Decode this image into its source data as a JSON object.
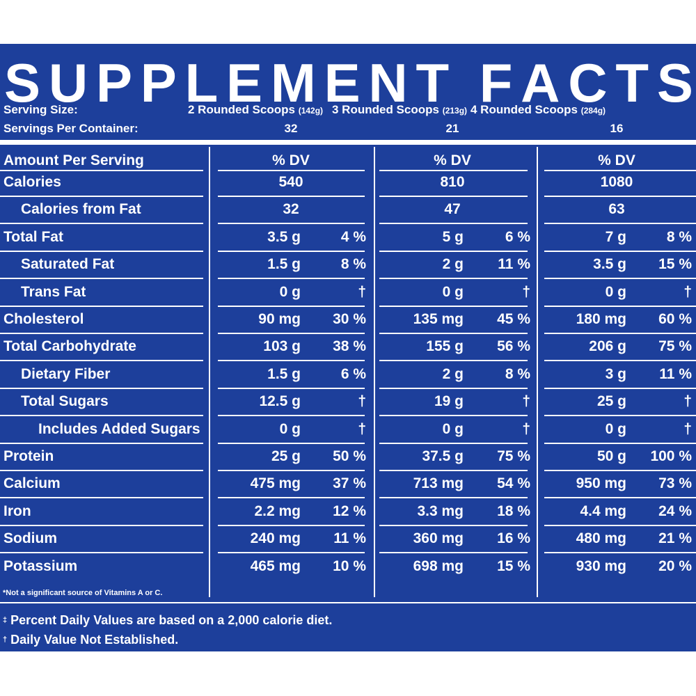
{
  "title_letters": [
    "S",
    "U",
    "P",
    "P",
    "L",
    "E",
    "M",
    "E",
    "N",
    "T",
    " ",
    "F",
    "A",
    "C",
    "T",
    "S"
  ],
  "serving": {
    "size_label": "Serving Size:",
    "per_container_label": "Servings Per Container:",
    "options": [
      {
        "label": "2 Rounded Scoops",
        "grams": "(142g)",
        "servings": "32"
      },
      {
        "label": "3 Rounded Scoops",
        "grams": "(213g)",
        "servings": "21"
      },
      {
        "label": "4 Rounded Scoops",
        "grams": "(284g)",
        "servings": "16"
      }
    ]
  },
  "header": {
    "amount_label": "Amount Per Serving",
    "dv_labels": [
      "% DV",
      "% DV",
      "% DV"
    ]
  },
  "rows": [
    {
      "label": "Calories",
      "indent": 0,
      "single": true,
      "values": [
        "540",
        "810",
        "1080"
      ]
    },
    {
      "label": "Calories from Fat",
      "indent": 1,
      "single": true,
      "values": [
        "32",
        "47",
        "63"
      ]
    },
    {
      "label": "Total Fat",
      "indent": 0,
      "values": [
        [
          "3.5 g",
          "4 %"
        ],
        [
          "5 g",
          "6 %"
        ],
        [
          "7 g",
          "8 %"
        ]
      ]
    },
    {
      "label": "Saturated Fat",
      "indent": 1,
      "values": [
        [
          "1.5 g",
          "8 %"
        ],
        [
          "2 g",
          "11 %"
        ],
        [
          "3.5 g",
          "15 %"
        ]
      ]
    },
    {
      "label": "Trans Fat",
      "indent": 1,
      "values": [
        [
          "0 g",
          "†"
        ],
        [
          "0 g",
          "†"
        ],
        [
          "0 g",
          "†"
        ]
      ]
    },
    {
      "label": "Cholesterol",
      "indent": 0,
      "values": [
        [
          "90 mg",
          "30 %"
        ],
        [
          "135 mg",
          "45 %"
        ],
        [
          "180 mg",
          "60 %"
        ]
      ]
    },
    {
      "label": "Total Carbohydrate",
      "indent": 0,
      "values": [
        [
          "103 g",
          "38 %"
        ],
        [
          "155 g",
          "56 %"
        ],
        [
          "206 g",
          "75 %"
        ]
      ]
    },
    {
      "label": "Dietary Fiber",
      "indent": 1,
      "values": [
        [
          "1.5 g",
          "6 %"
        ],
        [
          "2 g",
          "8 %"
        ],
        [
          "3 g",
          "11 %"
        ]
      ]
    },
    {
      "label": "Total Sugars",
      "indent": 1,
      "values": [
        [
          "12.5 g",
          "†"
        ],
        [
          "19 g",
          "†"
        ],
        [
          "25 g",
          "†"
        ]
      ]
    },
    {
      "label": "Includes Added Sugars",
      "indent": 2,
      "values": [
        [
          "0 g",
          "†"
        ],
        [
          "0 g",
          "†"
        ],
        [
          "0 g",
          "†"
        ]
      ]
    },
    {
      "label": "Protein",
      "indent": 0,
      "values": [
        [
          "25 g",
          "50 %"
        ],
        [
          "37.5 g",
          "75 %"
        ],
        [
          "50 g",
          "100 %"
        ]
      ]
    },
    {
      "label": "Calcium",
      "indent": 0,
      "values": [
        [
          "475 mg",
          "37 %"
        ],
        [
          "713 mg",
          "54 %"
        ],
        [
          "950 mg",
          "73 %"
        ]
      ]
    },
    {
      "label": "Iron",
      "indent": 0,
      "values": [
        [
          "2.2 mg",
          "12 %"
        ],
        [
          "3.3 mg",
          "18 %"
        ],
        [
          "4.4 mg",
          "24 %"
        ]
      ]
    },
    {
      "label": "Sodium",
      "indent": 0,
      "values": [
        [
          "240 mg",
          "11 %"
        ],
        [
          "360 mg",
          "16 %"
        ],
        [
          "480 mg",
          "21 %"
        ]
      ]
    },
    {
      "label": "Potassium",
      "indent": 0,
      "values": [
        [
          "465 mg",
          "10 %"
        ],
        [
          "698 mg",
          "15 %"
        ],
        [
          "930 mg",
          "20 %"
        ]
      ]
    }
  ],
  "note": "*Not a significant source of Vitamins A or C.",
  "footnotes": [
    {
      "mark": "‡",
      "text": "Percent Daily Values are based on a 2,000 calorie diet."
    },
    {
      "mark": "†",
      "text": "Daily Value Not Established."
    }
  ],
  "colors": {
    "panel": "#1d3f9b",
    "text": "#ffffff",
    "page": "#ffffff"
  }
}
